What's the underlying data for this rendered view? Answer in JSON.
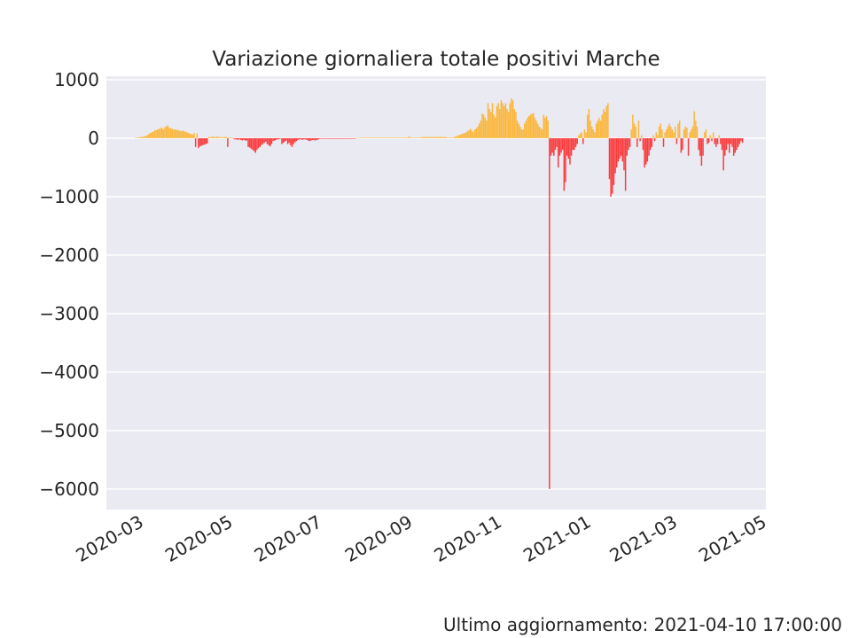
{
  "chart_data": {
    "type": "bar",
    "title": "Variazione giornaliera totale positivi Marche",
    "xlabel": "",
    "ylabel": "",
    "ylim": [
      -6350,
      1060
    ],
    "yticks": [
      "1000",
      "0",
      "−1000",
      "−2000",
      "−3000",
      "−4000",
      "−5000",
      "−6000"
    ],
    "xticks": [
      "2020-03",
      "2020-05",
      "2020-07",
      "2020-09",
      "2020-11",
      "2021-01",
      "2021-03",
      "2021-05"
    ],
    "grid": true,
    "colors": {
      "positive": "#ffa500",
      "negative": "#ff0000",
      "background": "#eaeaf2",
      "grid": "#ffffff"
    },
    "series": [
      {
        "x_start": "2020-02-25",
        "x_step": "1 day",
        "values": [
          10,
          10,
          10,
          20,
          20,
          25,
          30,
          40,
          50,
          70,
          90,
          100,
          110,
          130,
          140,
          150,
          160,
          170,
          180,
          150,
          190,
          200,
          220,
          180,
          170,
          160,
          150,
          150,
          140,
          140,
          130,
          120,
          130,
          120,
          110,
          100,
          90,
          80,
          70,
          60,
          90,
          -150,
          80,
          -170,
          -140,
          -130,
          -120,
          -110,
          -100,
          -90,
          20,
          20,
          20,
          30,
          20,
          20,
          30,
          20,
          20,
          10,
          20,
          20,
          20,
          -150,
          10,
          10,
          10,
          -10,
          -20,
          -20,
          -30,
          -20,
          -30,
          -40,
          -30,
          -40,
          -40,
          -150,
          -160,
          -180,
          -200,
          -220,
          -250,
          -200,
          -170,
          -150,
          -120,
          -100,
          -80,
          -60,
          -100,
          -120,
          -140,
          -100,
          -50,
          -40,
          -30,
          -20,
          -20,
          -10,
          -100,
          -80,
          -60,
          -40,
          -100,
          -80,
          -120,
          -150,
          -100,
          -70,
          -50,
          -30,
          -20,
          -20,
          -30,
          -20,
          -20,
          -30,
          -40,
          -50,
          -40,
          -30,
          -30,
          -40,
          -30,
          -20,
          -10,
          -10,
          -10,
          -10,
          -10,
          -10,
          -10,
          -10,
          -10,
          -10,
          -10,
          -10,
          -10,
          -10,
          -10,
          -10,
          -10,
          -10,
          -10,
          -10,
          -10,
          -10,
          -10,
          -10,
          -10,
          5,
          5,
          5,
          10,
          10,
          10,
          10,
          10,
          10,
          10,
          10,
          10,
          10,
          10,
          10,
          10,
          10,
          10,
          10,
          10,
          10,
          10,
          10,
          10,
          10,
          10,
          10,
          10,
          10,
          10,
          10,
          10,
          10,
          10,
          10,
          10,
          30,
          10,
          10,
          10,
          10,
          10,
          10,
          10,
          10,
          20,
          20,
          20,
          20,
          20,
          20,
          20,
          20,
          20,
          20,
          20,
          20,
          20,
          20,
          20,
          20,
          20,
          10,
          10,
          10,
          10,
          10,
          20,
          30,
          40,
          50,
          60,
          70,
          80,
          90,
          100,
          120,
          140,
          160,
          130,
          100,
          150,
          170,
          200,
          250,
          300,
          420,
          400,
          350,
          300,
          600,
          500,
          450,
          600,
          400,
          350,
          550,
          600,
          500,
          650,
          600,
          550,
          600,
          500,
          450,
          600,
          680,
          650,
          500,
          450,
          300,
          250,
          200,
          150,
          150,
          250,
          300,
          350,
          380,
          400,
          420,
          430,
          350,
          300,
          250,
          200,
          180,
          150,
          400,
          350,
          380,
          300,
          -6000,
          -300,
          -250,
          -300,
          -200,
          -150,
          -500,
          -300,
          -250,
          -200,
          -900,
          -750,
          -300,
          -350,
          -450,
          -300,
          -200,
          -200,
          -150,
          -100,
          50,
          80,
          100,
          -100,
          150,
          100,
          400,
          500,
          300,
          200,
          150,
          100,
          250,
          300,
          350,
          300,
          400,
          500,
          450,
          550,
          600,
          -700,
          -1000,
          -950,
          -800,
          -600,
          -500,
          -400,
          -350,
          -300,
          -400,
          -550,
          -900,
          -300,
          -200,
          -150,
          150,
          400,
          250,
          200,
          -150,
          300,
          -50,
          50,
          -200,
          -500,
          -450,
          -400,
          -300,
          -200,
          -150,
          50,
          -50,
          100,
          50,
          200,
          250,
          150,
          -150,
          100,
          150,
          200,
          250,
          200,
          150,
          100,
          200,
          -100,
          250,
          300,
          -250,
          -200,
          150,
          200,
          180,
          -300,
          100,
          150,
          200,
          460,
          300,
          200,
          -200,
          -300,
          -470,
          -300,
          100,
          150,
          -100,
          -80,
          50,
          -50,
          100,
          -100,
          -150,
          -100,
          50,
          -100,
          -200,
          -550,
          -300,
          -200,
          -100,
          -250,
          -100,
          -150,
          -300,
          -250,
          -200,
          -150,
          -100,
          -50,
          -80
        ]
      }
    ]
  },
  "footer": "Ultimo aggiornamento: 2021-04-10 17:00:00"
}
